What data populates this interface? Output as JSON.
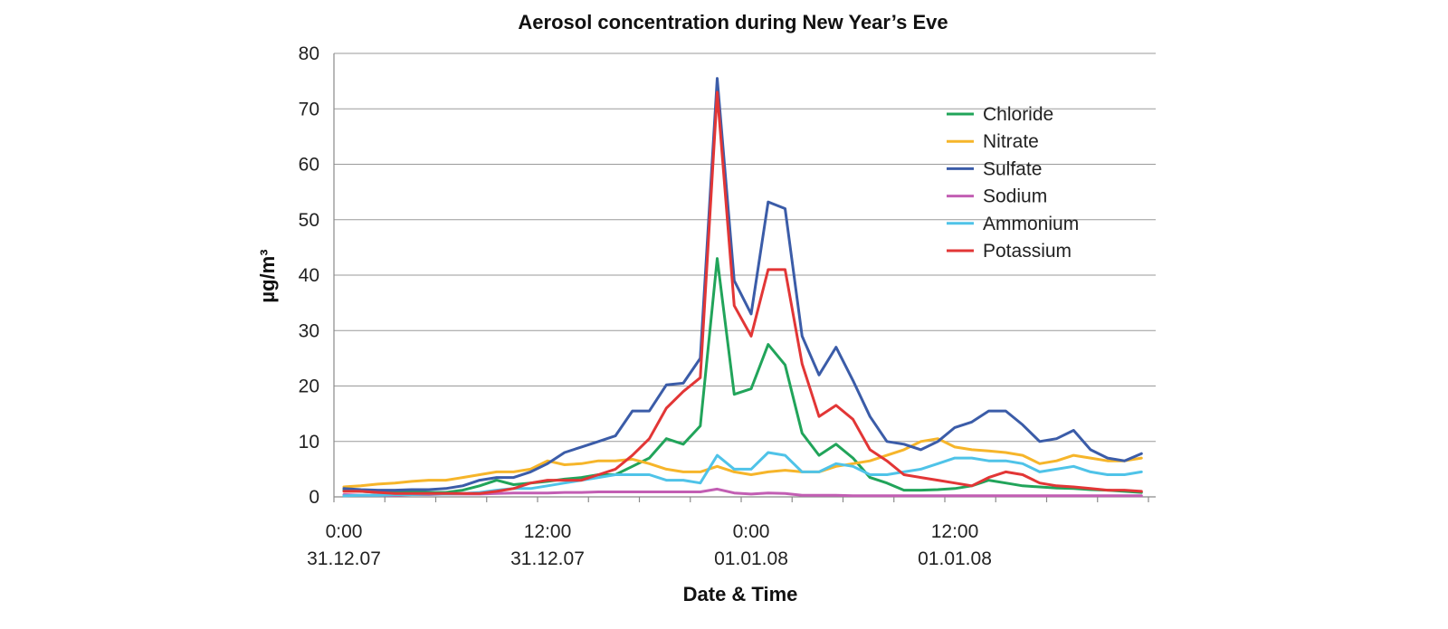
{
  "chart_data": {
    "type": "line",
    "title": "Aerosol concentration during New Year’s Eve",
    "xlabel": "Date & Time",
    "ylabel": "µg/m³",
    "ylim": [
      0,
      80
    ],
    "yticks": [
      0,
      10,
      20,
      30,
      40,
      50,
      60,
      70,
      80
    ],
    "x_unit": "hours since 0:00 31.12.07",
    "x": [
      0,
      1,
      2,
      3,
      4,
      5,
      6,
      7,
      8,
      9,
      10,
      11,
      12,
      13,
      14,
      15,
      16,
      17,
      18,
      19,
      20,
      21,
      22,
      23,
      24,
      25,
      26,
      27,
      28,
      29,
      30,
      31,
      32,
      33,
      34,
      35,
      36,
      37,
      38,
      39,
      40,
      41,
      42,
      43,
      44,
      45,
      46,
      47
    ],
    "xticks": [
      {
        "x": 0,
        "line1": "0:00",
        "line2": "31.12.07"
      },
      {
        "x": 12,
        "line1": "12:00",
        "line2": "31.12.07"
      },
      {
        "x": 24,
        "line1": "0:00",
        "line2": "01.01.08"
      },
      {
        "x": 36,
        "line1": "12:00",
        "line2": "01.01.08"
      }
    ],
    "grid": true,
    "legend_position": "top-right",
    "series": [
      {
        "name": "Chloride",
        "color": "#21a45a",
        "values": [
          1.2,
          1.0,
          0.8,
          0.8,
          0.9,
          0.8,
          0.8,
          1.2,
          2.0,
          3.0,
          2.2,
          2.5,
          2.8,
          3.2,
          3.5,
          4.0,
          4.0,
          5.5,
          7.0,
          10.5,
          9.5,
          12.8,
          43.0,
          18.5,
          19.5,
          27.5,
          23.8,
          11.5,
          7.5,
          9.5,
          7.0,
          3.5,
          2.5,
          1.2,
          1.2,
          1.3,
          1.5,
          2.0,
          3.0,
          2.5,
          2.0,
          1.8,
          1.6,
          1.5,
          1.3,
          1.2,
          1.0,
          0.8
        ]
      },
      {
        "name": "Nitrate",
        "color": "#f6b52a",
        "values": [
          1.8,
          2.0,
          2.3,
          2.5,
          2.8,
          3.0,
          3.0,
          3.5,
          4.0,
          4.5,
          4.5,
          5.0,
          6.5,
          5.8,
          6.0,
          6.5,
          6.5,
          6.8,
          6.0,
          5.0,
          4.5,
          4.5,
          5.5,
          4.5,
          4.0,
          4.5,
          4.8,
          4.5,
          4.5,
          5.5,
          6.0,
          6.5,
          7.5,
          8.5,
          10.0,
          10.5,
          9.0,
          8.5,
          8.3,
          8.0,
          7.5,
          6.0,
          6.5,
          7.5,
          7.0,
          6.5,
          6.5,
          7.0
        ]
      },
      {
        "name": "Sulfate",
        "color": "#3b5ca8",
        "values": [
          1.5,
          1.3,
          1.2,
          1.2,
          1.3,
          1.3,
          1.5,
          2.0,
          3.0,
          3.5,
          3.5,
          4.5,
          6.0,
          8.0,
          9.0,
          10.0,
          11.0,
          15.5,
          15.5,
          20.2,
          20.5,
          25.0,
          75.5,
          39.0,
          33.0,
          53.2,
          52.0,
          29.0,
          22.0,
          27.0,
          21.0,
          14.5,
          10.0,
          9.5,
          8.5,
          10.0,
          12.5,
          13.5,
          15.5,
          15.5,
          13.0,
          10.0,
          10.5,
          12.0,
          8.5,
          7.0,
          6.5,
          7.8
        ]
      },
      {
        "name": "Sodium",
        "color": "#c25eb3",
        "values": [
          0.4,
          0.3,
          0.3,
          0.3,
          0.4,
          0.4,
          0.5,
          0.5,
          0.5,
          0.6,
          0.7,
          0.7,
          0.7,
          0.8,
          0.8,
          0.9,
          0.9,
          0.9,
          0.9,
          0.9,
          0.9,
          0.9,
          1.4,
          0.7,
          0.5,
          0.7,
          0.6,
          0.3,
          0.3,
          0.3,
          0.2,
          0.2,
          0.2,
          0.2,
          0.2,
          0.2,
          0.2,
          0.2,
          0.2,
          0.2,
          0.2,
          0.2,
          0.2,
          0.2,
          0.2,
          0.2,
          0.2,
          0.2
        ]
      },
      {
        "name": "Ammonium",
        "color": "#4fc3e8",
        "values": [
          0.2,
          0.3,
          0.3,
          0.4,
          0.4,
          0.5,
          0.5,
          0.6,
          0.8,
          1.2,
          1.5,
          1.5,
          2.0,
          2.5,
          3.0,
          3.5,
          4.0,
          4.0,
          4.0,
          3.0,
          3.0,
          2.5,
          7.5,
          5.0,
          5.0,
          8.0,
          7.5,
          4.5,
          4.5,
          6.0,
          5.5,
          4.0,
          4.0,
          4.5,
          5.0,
          6.0,
          7.0,
          7.0,
          6.5,
          6.5,
          6.0,
          4.5,
          5.0,
          5.5,
          4.5,
          4.0,
          4.0,
          4.5
        ]
      },
      {
        "name": "Potassium",
        "color": "#e23636",
        "values": [
          1.0,
          1.0,
          0.8,
          0.6,
          0.6,
          0.6,
          0.6,
          0.6,
          0.6,
          1.0,
          1.5,
          2.5,
          3.0,
          3.0,
          3.0,
          4.0,
          5.0,
          7.5,
          10.5,
          16.0,
          19.0,
          21.5,
          73.0,
          34.5,
          29.0,
          41.0,
          41.0,
          24.0,
          14.5,
          16.5,
          14.0,
          8.5,
          6.5,
          4.0,
          3.5,
          3.0,
          2.5,
          2.0,
          3.5,
          4.5,
          4.0,
          2.5,
          2.0,
          1.8,
          1.5,
          1.2,
          1.2,
          1.0
        ]
      }
    ]
  }
}
